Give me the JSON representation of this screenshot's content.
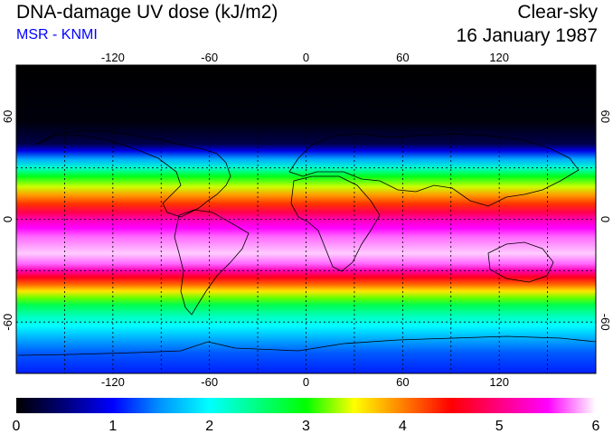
{
  "header": {
    "title": "DNA-damage UV dose (kJ/m2)",
    "subtitle": "MSR - KNMI",
    "condition": "Clear-sky",
    "date": "16 January 1987"
  },
  "colors": {
    "subtitle": "#0000ff",
    "frame": "#000000",
    "grid": "#000000"
  },
  "map": {
    "projection": "equirectangular",
    "lon_range": [
      -180,
      180
    ],
    "lat_range": [
      -90,
      90
    ],
    "gridlines_dashed": true,
    "lon_ticks": [
      {
        "value": -120,
        "label": "-120"
      },
      {
        "value": -60,
        "label": "-60"
      },
      {
        "value": 0,
        "label": "0"
      },
      {
        "value": 60,
        "label": "60"
      },
      {
        "value": 120,
        "label": "120"
      }
    ],
    "lat_ticks": [
      {
        "value": 60,
        "label": "60"
      },
      {
        "value": 0,
        "label": "0"
      },
      {
        "value": -60,
        "label": "-60"
      }
    ],
    "zonal_dose_profile": [
      {
        "lat": 90,
        "dose": 0.0
      },
      {
        "lat": 57,
        "dose": 0.05
      },
      {
        "lat": 44,
        "dose": 0.3
      },
      {
        "lat": 40,
        "dose": 0.9
      },
      {
        "lat": 35,
        "dose": 1.6
      },
      {
        "lat": 30,
        "dose": 2.2
      },
      {
        "lat": 25,
        "dose": 2.9
      },
      {
        "lat": 19,
        "dose": 3.4
      },
      {
        "lat": 14,
        "dose": 3.9
      },
      {
        "lat": 9,
        "dose": 4.3
      },
      {
        "lat": 4,
        "dose": 4.8
      },
      {
        "lat": 0,
        "dose": 5.2
      },
      {
        "lat": -5,
        "dose": 5.5
      },
      {
        "lat": -10,
        "dose": 5.7
      },
      {
        "lat": -20,
        "dose": 5.9
      },
      {
        "lat": -26,
        "dose": 5.7
      },
      {
        "lat": -30,
        "dose": 5.2
      },
      {
        "lat": -34,
        "dose": 4.6
      },
      {
        "lat": -38,
        "dose": 4.1
      },
      {
        "lat": -42,
        "dose": 3.6
      },
      {
        "lat": -46,
        "dose": 3.2
      },
      {
        "lat": -50,
        "dose": 2.7
      },
      {
        "lat": -56,
        "dose": 2.3
      },
      {
        "lat": -62,
        "dose": 2.0
      },
      {
        "lat": -70,
        "dose": 1.6
      },
      {
        "lat": -78,
        "dose": 1.3
      },
      {
        "lat": -90,
        "dose": 1.1
      }
    ]
  },
  "colorbar": {
    "min": 0,
    "max": 6,
    "tick_labels": [
      "0",
      "1",
      "2",
      "3",
      "4",
      "5",
      "6"
    ],
    "stops": [
      {
        "value": 0.0,
        "color": "#000000"
      },
      {
        "value": 0.5,
        "color": "#00007a"
      },
      {
        "value": 1.0,
        "color": "#0000ff"
      },
      {
        "value": 1.5,
        "color": "#0096ff"
      },
      {
        "value": 2.0,
        "color": "#00ffff"
      },
      {
        "value": 2.5,
        "color": "#00ff80"
      },
      {
        "value": 3.0,
        "color": "#00ff00"
      },
      {
        "value": 3.5,
        "color": "#ffff00"
      },
      {
        "value": 4.0,
        "color": "#ff8000"
      },
      {
        "value": 4.5,
        "color": "#ff0000"
      },
      {
        "value": 5.0,
        "color": "#ff0080"
      },
      {
        "value": 5.5,
        "color": "#ff00ff"
      },
      {
        "value": 6.0,
        "color": "#ffffff"
      }
    ]
  }
}
